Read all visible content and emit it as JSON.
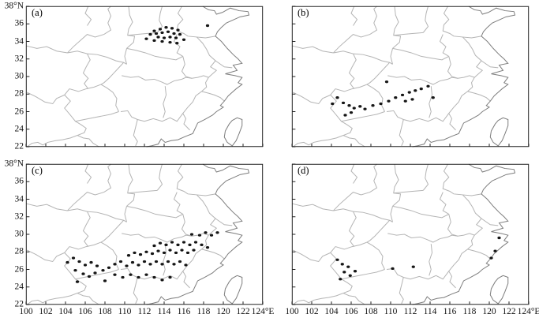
{
  "figure": {
    "description": "Four-panel map figure showing spatial distributions of event markers over southeastern China",
    "marker": {
      "name": "event-marker",
      "color": "#161616"
    }
  },
  "chart_data": {
    "type": "scatter",
    "layout": "2x2-panel-maps",
    "xlim": [
      100,
      124
    ],
    "ylim": [
      22,
      38
    ],
    "x_unit": "°E",
    "y_unit": "°N",
    "grid": false,
    "x_tick_labels": [
      "100",
      "102",
      "104",
      "106",
      "108",
      "110",
      "112",
      "114",
      "116",
      "118",
      "120",
      "122",
      "124°E"
    ],
    "y_tick_labels": [
      "38°N",
      "36",
      "34",
      "32",
      "30",
      "28",
      "26",
      "24",
      "22"
    ],
    "panels": [
      {
        "label": "(a)",
        "points": [
          [
            113.0,
            35.2
          ],
          [
            113.6,
            35.4
          ],
          [
            114.2,
            35.6
          ],
          [
            114.8,
            35.5
          ],
          [
            115.4,
            35.3
          ],
          [
            112.6,
            34.8
          ],
          [
            113.2,
            34.9
          ],
          [
            113.8,
            35.0
          ],
          [
            114.4,
            35.1
          ],
          [
            115.0,
            34.9
          ],
          [
            115.6,
            34.8
          ],
          [
            113.4,
            34.5
          ],
          [
            114.0,
            34.4
          ],
          [
            114.6,
            34.5
          ],
          [
            115.2,
            34.4
          ],
          [
            113.0,
            34.1
          ],
          [
            113.8,
            34.0
          ],
          [
            114.6,
            33.9
          ],
          [
            115.3,
            33.8
          ],
          [
            116.0,
            34.2
          ],
          [
            118.4,
            35.8
          ],
          [
            112.2,
            34.3
          ]
        ]
      },
      {
        "label": "(b)",
        "points": [
          [
            104.6,
            27.6
          ],
          [
            105.2,
            27.0
          ],
          [
            105.8,
            26.7
          ],
          [
            106.3,
            26.4
          ],
          [
            106.9,
            26.6
          ],
          [
            107.4,
            26.3
          ],
          [
            106.0,
            25.9
          ],
          [
            105.4,
            25.6
          ],
          [
            108.2,
            26.7
          ],
          [
            109.0,
            26.9
          ],
          [
            109.8,
            27.2
          ],
          [
            110.5,
            27.6
          ],
          [
            111.2,
            27.9
          ],
          [
            111.9,
            28.2
          ],
          [
            112.5,
            28.4
          ],
          [
            113.1,
            28.6
          ],
          [
            111.5,
            27.2
          ],
          [
            112.2,
            27.4
          ],
          [
            109.6,
            29.4
          ],
          [
            113.8,
            28.9
          ],
          [
            114.3,
            27.6
          ],
          [
            104.1,
            26.9
          ]
        ]
      },
      {
        "label": "(c)",
        "points": [
          [
            104.2,
            26.8
          ],
          [
            104.8,
            27.3
          ],
          [
            105.4,
            26.9
          ],
          [
            106.0,
            26.5
          ],
          [
            106.6,
            26.8
          ],
          [
            107.2,
            26.4
          ],
          [
            105.0,
            25.9
          ],
          [
            105.8,
            25.5
          ],
          [
            106.4,
            25.2
          ],
          [
            107.0,
            25.6
          ],
          [
            107.8,
            25.9
          ],
          [
            108.4,
            26.2
          ],
          [
            109.0,
            26.6
          ],
          [
            109.6,
            26.9
          ],
          [
            110.2,
            26.4
          ],
          [
            110.8,
            26.8
          ],
          [
            111.4,
            26.5
          ],
          [
            112.0,
            26.9
          ],
          [
            112.6,
            26.6
          ],
          [
            113.2,
            26.9
          ],
          [
            113.8,
            26.6
          ],
          [
            114.4,
            26.9
          ],
          [
            115.0,
            26.6
          ],
          [
            115.6,
            26.9
          ],
          [
            116.2,
            26.5
          ],
          [
            110.4,
            27.6
          ],
          [
            111.0,
            27.9
          ],
          [
            111.6,
            27.7
          ],
          [
            112.2,
            28.0
          ],
          [
            112.8,
            27.8
          ],
          [
            113.4,
            28.1
          ],
          [
            114.0,
            27.9
          ],
          [
            114.6,
            28.2
          ],
          [
            115.2,
            27.9
          ],
          [
            115.8,
            28.2
          ],
          [
            116.4,
            27.9
          ],
          [
            117.0,
            28.2
          ],
          [
            113.0,
            28.7
          ],
          [
            113.6,
            29.0
          ],
          [
            114.2,
            28.8
          ],
          [
            114.8,
            29.1
          ],
          [
            115.4,
            28.8
          ],
          [
            116.0,
            29.1
          ],
          [
            116.6,
            28.8
          ],
          [
            117.2,
            29.1
          ],
          [
            117.8,
            28.8
          ],
          [
            118.4,
            28.5
          ],
          [
            117.6,
            29.9
          ],
          [
            118.2,
            30.2
          ],
          [
            118.8,
            29.9
          ],
          [
            119.4,
            30.2
          ],
          [
            116.8,
            30.0
          ],
          [
            109.0,
            25.4
          ],
          [
            109.8,
            25.1
          ],
          [
            110.6,
            25.4
          ],
          [
            111.4,
            25.1
          ],
          [
            112.2,
            25.4
          ],
          [
            113.0,
            25.1
          ],
          [
            113.8,
            24.8
          ],
          [
            114.6,
            25.1
          ],
          [
            108.0,
            24.7
          ],
          [
            105.2,
            24.6
          ]
        ]
      },
      {
        "label": "(d)",
        "points": [
          [
            104.6,
            27.1
          ],
          [
            105.1,
            26.6
          ],
          [
            105.7,
            26.3
          ],
          [
            105.3,
            25.7
          ],
          [
            105.9,
            25.3
          ],
          [
            106.4,
            25.8
          ],
          [
            104.9,
            24.9
          ],
          [
            110.2,
            26.1
          ],
          [
            112.3,
            26.3
          ],
          [
            120.6,
            28.1
          ],
          [
            121.0,
            29.6
          ],
          [
            120.2,
            27.3
          ]
        ]
      }
    ]
  }
}
